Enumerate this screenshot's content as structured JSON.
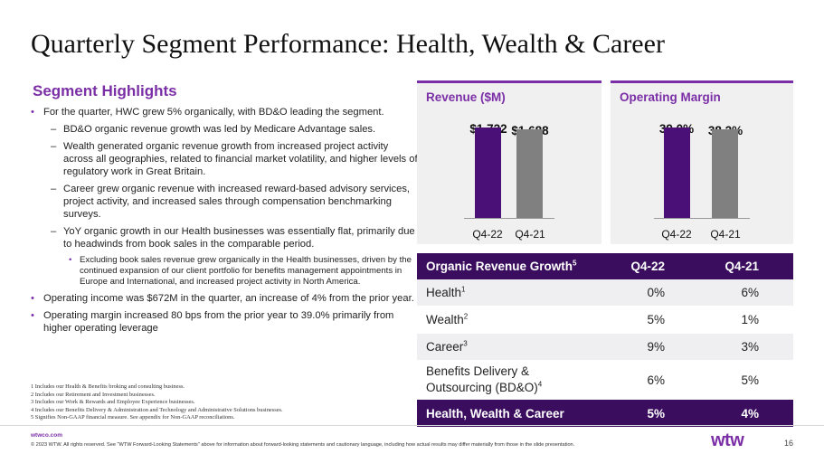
{
  "title": "Quarterly Segment Performance: Health, Wealth & Career",
  "highlights": {
    "heading": "Segment Highlights",
    "items": [
      {
        "level": 1,
        "text": "For the quarter, HWC grew 5% organically, with BD&O leading the segment."
      },
      {
        "level": 2,
        "text": "BD&O organic revenue growth was led by Medicare Advantage sales."
      },
      {
        "level": 2,
        "text": "Wealth generated organic revenue growth from increased project activity across all geographies, related to financial market volatility, and higher levels of regulatory work in Great Britain."
      },
      {
        "level": 2,
        "text": "Career grew organic revenue with increased reward-based advisory services, project activity, and increased sales through compensation benchmarking surveys."
      },
      {
        "level": 2,
        "text": "YoY organic growth in our Health businesses was essentially flat, primarily due to headwinds from book sales in the comparable period."
      },
      {
        "level": 3,
        "text": "Excluding book sales revenue grew organically in the Health businesses, driven by the continued expansion of our client portfolio for benefits management appointments in Europe and International, and increased project activity in North America."
      },
      {
        "level": 1,
        "text": "Operating income was $672M in the quarter, an increase of 4% from the prior year."
      },
      {
        "level": 1,
        "text": "Operating margin increased 80 bps from the prior year to 39.0% primarily from higher operating leverage"
      }
    ]
  },
  "footnotes": [
    "1 Includes our Health & Benefits broking and consulting business.",
    "2 Includes our Retirement and Investment businesses.",
    "3 Includes our Work & Rewards and Employee Experience businesses.",
    "4 Includes our Benefits Delivery & Administration and Technology and Administrative Solutions businesses.",
    "5 Signifies Non-GAAP financial measure. See appendix for Non-GAAP reconciliations."
  ],
  "footer": {
    "site": "wtwco.com",
    "legal": "© 2023 WTW. All rights reserved. See \"WTW Forward-Looking Statements\" above for information about forward-looking statements and cautionary language, including how actual results may differ materially from those in the slide presentation.",
    "logo": "wtw",
    "page": "16"
  },
  "colors": {
    "accent": "#7b2fa6",
    "dark_purple": "#3a0d5e",
    "bar_current": "#4b0f78",
    "bar_prior": "#808080"
  },
  "chart_data": [
    {
      "type": "bar",
      "title": "Revenue ($M)",
      "categories": [
        "Q4-22",
        "Q4-21"
      ],
      "values": [
        1722,
        1688
      ],
      "labels": [
        "$1,722",
        "$1,688"
      ]
    },
    {
      "type": "bar",
      "title": "Operating Margin",
      "categories": [
        "Q4-22",
        "Q4-21"
      ],
      "values": [
        39.0,
        38.2
      ],
      "labels": [
        "39.0%",
        "38.2%"
      ]
    }
  ],
  "table": {
    "headers": [
      "Organic Revenue Growth",
      "Q4-22",
      "Q4-21"
    ],
    "header_sup": "5",
    "rows": [
      {
        "label": "Health",
        "sup": "1",
        "q422": "0%",
        "q421": "6%"
      },
      {
        "label": "Wealth",
        "sup": "2",
        "q422": "5%",
        "q421": "1%"
      },
      {
        "label": "Career",
        "sup": "3",
        "q422": "9%",
        "q421": "3%"
      },
      {
        "label": "Benefits Delivery & Outsourcing (BD&O)",
        "sup": "4",
        "q422": "6%",
        "q421": "5%"
      }
    ],
    "total": {
      "label": "Health, Wealth & Career",
      "q422": "5%",
      "q421": "4%"
    }
  }
}
